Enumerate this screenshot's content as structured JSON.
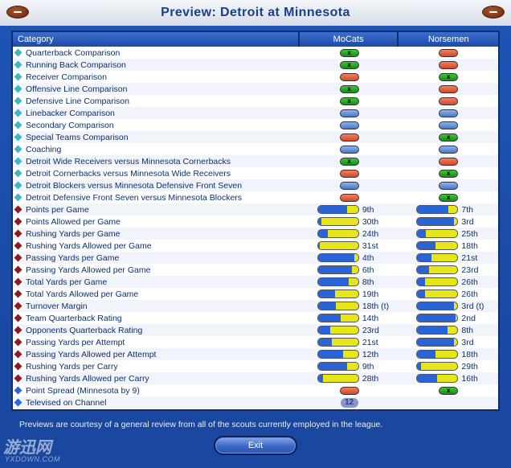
{
  "window": {
    "title": "Preview: Detroit at Minnesota"
  },
  "table": {
    "headers": {
      "category": "Category",
      "team1": "MoCats",
      "team2": "Norsemen"
    },
    "comparisons": [
      {
        "label": "Quarterback Comparison",
        "t1": "green",
        "t2": "red"
      },
      {
        "label": "Running Back Comparison",
        "t1": "green",
        "t2": "red"
      },
      {
        "label": "Receiver Comparison",
        "t1": "red",
        "t2": "green"
      },
      {
        "label": "Offensive Line Comparison",
        "t1": "green",
        "t2": "red"
      },
      {
        "label": "Defensive Line Comparison",
        "t1": "green",
        "t2": "red"
      },
      {
        "label": "Linebacker Comparison",
        "t1": "blue",
        "t2": "blue"
      },
      {
        "label": "Secondary Comparison",
        "t1": "blue",
        "t2": "blue"
      },
      {
        "label": "Special Teams Comparison",
        "t1": "red",
        "t2": "green"
      },
      {
        "label": "Coaching",
        "t1": "blue",
        "t2": "blue"
      },
      {
        "label": "Detroit Wide Receivers versus Minnesota Cornerbacks",
        "t1": "green",
        "t2": "red"
      },
      {
        "label": "Detroit Cornerbacks versus Minnesota Wide Receivers",
        "t1": "red",
        "t2": "green"
      },
      {
        "label": "Detroit Blockers versus Minnesota Defensive Front Seven",
        "t1": "blue",
        "t2": "blue"
      },
      {
        "label": "Detroit Defensive Front Seven versus Minnesota Blockers",
        "t1": "red",
        "t2": "green"
      }
    ],
    "rankings": [
      {
        "label": "Points per Game",
        "t1_rank": "9th",
        "t1_fill": 0.72,
        "t2_rank": "7th",
        "t2_fill": 0.78
      },
      {
        "label": "Points Allowed per Game",
        "t1_rank": "30th",
        "t1_fill": 0.08,
        "t2_rank": "3rd",
        "t2_fill": 0.92
      },
      {
        "label": "Rushing Yards per Game",
        "t1_rank": "24th",
        "t1_fill": 0.25,
        "t2_rank": "25th",
        "t2_fill": 0.22
      },
      {
        "label": "Rushing Yards Allowed per Game",
        "t1_rank": "31st",
        "t1_fill": 0.05,
        "t2_rank": "18th",
        "t2_fill": 0.45
      },
      {
        "label": "Passing Yards per Game",
        "t1_rank": "4th",
        "t1_fill": 0.9,
        "t2_rank": "21st",
        "t2_fill": 0.35
      },
      {
        "label": "Passing Yards Allowed per Game",
        "t1_rank": "6th",
        "t1_fill": 0.84,
        "t2_rank": "23rd",
        "t2_fill": 0.3
      },
      {
        "label": "Total Yards per Game",
        "t1_rank": "8th",
        "t1_fill": 0.76,
        "t2_rank": "26th",
        "t2_fill": 0.2
      },
      {
        "label": "Total Yards Allowed per Game",
        "t1_rank": "19th",
        "t1_fill": 0.42,
        "t2_rank": "26th",
        "t2_fill": 0.2
      },
      {
        "label": "Turnover Margin",
        "t1_rank": "18th (t)",
        "t1_fill": 0.45,
        "t2_rank": "3rd (t)",
        "t2_fill": 0.92
      },
      {
        "label": "Team Quarterback Rating",
        "t1_rank": "14th",
        "t1_fill": 0.56,
        "t2_rank": "2nd",
        "t2_fill": 0.95
      },
      {
        "label": "Opponents Quarterback Rating",
        "t1_rank": "23rd",
        "t1_fill": 0.3,
        "t2_rank": "8th",
        "t2_fill": 0.76
      },
      {
        "label": "Passing Yards per Attempt",
        "t1_rank": "21st",
        "t1_fill": 0.35,
        "t2_rank": "3rd",
        "t2_fill": 0.92
      },
      {
        "label": "Passing Yards Allowed per Attempt",
        "t1_rank": "12th",
        "t1_fill": 0.62,
        "t2_rank": "18th",
        "t2_fill": 0.45
      },
      {
        "label": "Rushing Yards per Carry",
        "t1_rank": "9th",
        "t1_fill": 0.72,
        "t2_rank": "29th",
        "t2_fill": 0.1
      },
      {
        "label": "Rushing Yards Allowed per Carry",
        "t1_rank": "28th",
        "t1_fill": 0.12,
        "t2_rank": "16th",
        "t2_fill": 0.5
      }
    ],
    "spread": {
      "label": "Point Spread (Minnesota by 9)",
      "t1": "red",
      "t2": "green"
    },
    "televised": {
      "label": "Televised on Channel",
      "channel": "12"
    }
  },
  "footer": {
    "note": "Previews are courtesy of a general review from all of the scouts currently employed in the league.",
    "exit_label": "Exit"
  },
  "watermark": {
    "main": "游迅网",
    "sub": "YXDOWN.COM"
  }
}
